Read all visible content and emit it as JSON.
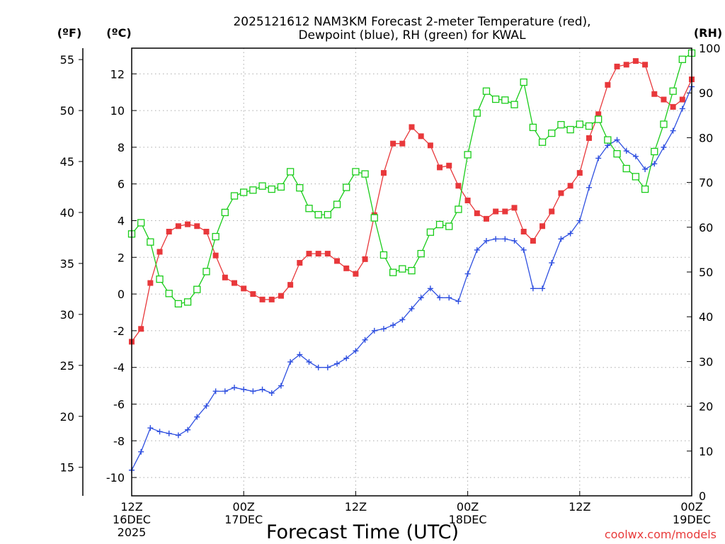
{
  "chart_data": {
    "type": "line",
    "title_line1": "2025121612 NAM3KM Forecast 2-meter Temperature (red),",
    "title_line2": "Dewpoint (blue), RH (green) for KWAL",
    "xlabel": "Forecast Time (UTC)",
    "unit_f": "(ºF)",
    "unit_c": "(ºC)",
    "unit_rh": "(RH)",
    "watermark": "coolwx.com/models",
    "x_range_hours": [
      0,
      60
    ],
    "y_celsius_range": [
      -11,
      13.4
    ],
    "y_rh_range": [
      0,
      100
    ],
    "y_celsius_ticks": [
      "-10",
      "-8",
      "-6",
      "-4",
      "-2",
      "0",
      "2",
      "4",
      "6",
      "8",
      "10",
      "12"
    ],
    "y_fahrenheit_ticks": [
      "15",
      "20",
      "25",
      "30",
      "35",
      "40",
      "45",
      "50",
      "55"
    ],
    "y_rh_ticks": [
      "0",
      "10",
      "20",
      "30",
      "40",
      "50",
      "60",
      "70",
      "80",
      "90",
      "100"
    ],
    "x_ticks": [
      {
        "hour": 0,
        "line1": "12Z",
        "line2": "16DEC",
        "line3": "2025"
      },
      {
        "hour": 12,
        "line1": "00Z",
        "line2": "17DEC",
        "line3": ""
      },
      {
        "hour": 24,
        "line1": "12Z",
        "line2": "",
        "line3": ""
      },
      {
        "hour": 36,
        "line1": "00Z",
        "line2": "18DEC",
        "line3": ""
      },
      {
        "hour": 48,
        "line1": "12Z",
        "line2": "",
        "line3": ""
      },
      {
        "hour": 60,
        "line1": "00Z",
        "line2": "19DEC",
        "line3": ""
      }
    ],
    "series": [
      {
        "name": "Temperature",
        "color": "#e8383b",
        "marker": "filled-square",
        "axis": "celsius",
        "hours": [
          0,
          1,
          2,
          3,
          4,
          5,
          6,
          7,
          8,
          9,
          10,
          11,
          12,
          13,
          14,
          15,
          16,
          17,
          18,
          19,
          20,
          21,
          22,
          23,
          24,
          25,
          26,
          27,
          28,
          29,
          30,
          31,
          32,
          33,
          34,
          35,
          36,
          37,
          38,
          39,
          40,
          41,
          42,
          43,
          44,
          45,
          46,
          47,
          48,
          49,
          50,
          51,
          52,
          53,
          54,
          55,
          56,
          57,
          58,
          59,
          60
        ],
        "values": [
          -2.6,
          -1.9,
          0.6,
          2.3,
          3.4,
          3.7,
          3.8,
          3.7,
          3.4,
          2.1,
          0.9,
          0.6,
          0.3,
          0.0,
          -0.3,
          -0.3,
          -0.1,
          0.5,
          1.7,
          2.2,
          2.2,
          2.2,
          1.8,
          1.4,
          1.1,
          1.9,
          4.3,
          6.6,
          8.2,
          8.2,
          9.1,
          8.6,
          8.1,
          6.9,
          7.0,
          5.9,
          5.1,
          4.4,
          4.1,
          4.5,
          4.5,
          4.7,
          3.4,
          2.9,
          3.7,
          4.5,
          5.5,
          5.9,
          6.6,
          8.5,
          9.8,
          11.4,
          12.4,
          12.5,
          12.7,
          12.5,
          10.9,
          10.6,
          10.2,
          10.6,
          11.7
        ]
      },
      {
        "name": "Dewpoint",
        "color": "#2e4fe0",
        "marker": "plus",
        "axis": "celsius",
        "hours": [
          0,
          1,
          2,
          3,
          4,
          5,
          6,
          7,
          8,
          9,
          10,
          11,
          12,
          13,
          14,
          15,
          16,
          17,
          18,
          19,
          20,
          21,
          22,
          23,
          24,
          25,
          26,
          27,
          28,
          29,
          30,
          31,
          32,
          33,
          34,
          35,
          36,
          37,
          38,
          39,
          40,
          41,
          42,
          43,
          44,
          45,
          46,
          47,
          48,
          49,
          50,
          51,
          52,
          53,
          54,
          55,
          56,
          57,
          58,
          59,
          60
        ],
        "values": [
          -9.6,
          -8.6,
          -7.3,
          -7.5,
          -7.6,
          -7.7,
          -7.4,
          -6.7,
          -6.1,
          -5.3,
          -5.3,
          -5.1,
          -5.2,
          -5.3,
          -5.2,
          -5.4,
          -5.0,
          -3.7,
          -3.3,
          -3.7,
          -4.0,
          -4.0,
          -3.8,
          -3.5,
          -3.1,
          -2.5,
          -2.0,
          -1.9,
          -1.7,
          -1.4,
          -0.8,
          -0.2,
          0.3,
          -0.2,
          -0.2,
          -0.4,
          1.1,
          2.4,
          2.9,
          3.0,
          3.0,
          2.9,
          2.4,
          0.3,
          0.3,
          1.7,
          3.0,
          3.3,
          4.0,
          5.8,
          7.4,
          8.1,
          8.4,
          7.8,
          7.5,
          6.8,
          7.1,
          8.0,
          8.9,
          10.1,
          11.3
        ]
      },
      {
        "name": "RH",
        "color": "#19cc19",
        "marker": "hollow-square",
        "axis": "rh",
        "hours": [
          0,
          1,
          2,
          3,
          4,
          5,
          6,
          7,
          8,
          9,
          10,
          11,
          12,
          13,
          14,
          15,
          16,
          17,
          18,
          19,
          20,
          21,
          22,
          23,
          24,
          25,
          26,
          27,
          28,
          29,
          30,
          31,
          32,
          33,
          34,
          35,
          36,
          37,
          38,
          39,
          40,
          41,
          42,
          43,
          44,
          45,
          46,
          47,
          48,
          49,
          50,
          51,
          52,
          53,
          54,
          55,
          56,
          57,
          58,
          59,
          60
        ],
        "values": [
          58.5,
          61.0,
          56.7,
          48.4,
          45.2,
          42.9,
          43.3,
          46.1,
          50.1,
          57.9,
          63.3,
          67.0,
          67.8,
          68.3,
          69.2,
          68.5,
          69.0,
          72.4,
          68.8,
          64.2,
          62.8,
          62.8,
          65.1,
          68.9,
          72.4,
          71.9,
          62.1,
          53.8,
          49.9,
          50.7,
          50.3,
          54.1,
          58.9,
          60.6,
          60.2,
          64.0,
          76.2,
          85.5,
          90.4,
          88.6,
          88.4,
          87.4,
          92.4,
          82.3,
          79.0,
          81.0,
          82.9,
          81.8,
          83.0,
          82.6,
          84.1,
          79.5,
          76.4,
          73.1,
          71.3,
          68.5,
          76.9,
          83.0,
          90.4,
          97.5,
          98.9
        ]
      }
    ]
  }
}
